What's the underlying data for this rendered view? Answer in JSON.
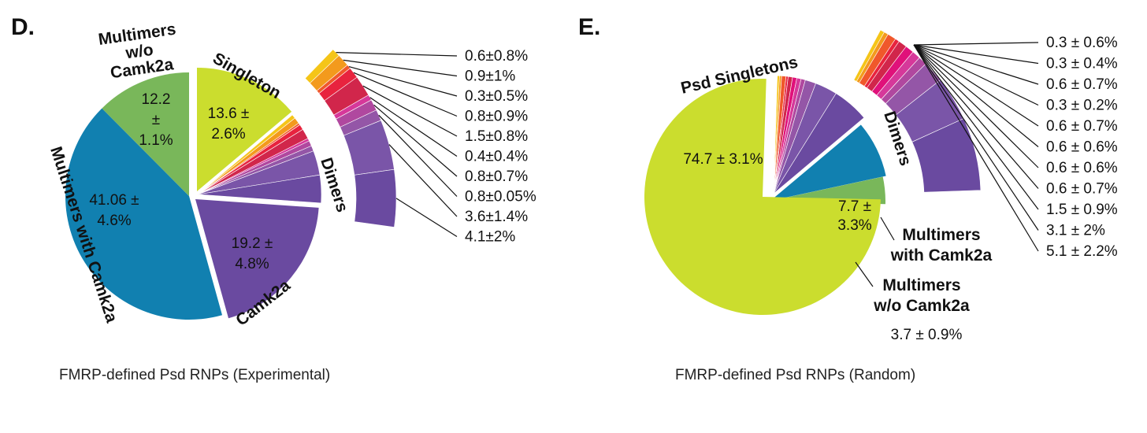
{
  "panels": {
    "d": {
      "letter": "D.",
      "caption": "FMRP-defined Psd RNPs (Experimental)"
    },
    "e": {
      "letter": "E.",
      "caption": "FMRP-defined Psd RNPs (Random)"
    }
  },
  "colors": {
    "blue": "#1180b0",
    "green": "#79b75a",
    "yellowgreen": "#cbdd2e",
    "purple": "#6a4aa0",
    "dimer_palette": [
      "#f5c518",
      "#f39a1d",
      "#f0582b",
      "#e8233e",
      "#d1264b",
      "#e0117a",
      "#d6389a",
      "#b0489f",
      "#9456a7",
      "#7a55a8",
      "#6a4aa0"
    ]
  },
  "chart_data": [
    {
      "type": "pie",
      "title": "FMRP-defined Psd RNPs (Experimental)",
      "slices": [
        {
          "label": "Singleton",
          "value": 13.6,
          "display": [
            "13.6 ±",
            "2.6%"
          ],
          "color": "#cbdd2e"
        },
        {
          "label": "Dimers",
          "value": 12.0,
          "display": [],
          "color": "#b0489f"
        },
        {
          "label": "Camk2a",
          "value": 19.2,
          "display": [
            "19.2 ±",
            "4.8%"
          ],
          "color": "#6a4aa0"
        },
        {
          "label": "Multimers with Camk2a",
          "value": 41.06,
          "display": [
            "41.06 ±",
            "4.6%"
          ],
          "color": "#1180b0"
        },
        {
          "label": [
            "Multimers",
            "w/o",
            "Camk2a"
          ],
          "value": 12.2,
          "display": [
            "12.2",
            "±",
            "1.1%"
          ],
          "color": "#79b75a"
        }
      ],
      "dimers": {
        "label": "Dimers",
        "values": [
          0.6,
          0.9,
          0.3,
          0.8,
          1.5,
          0.4,
          0.8,
          0.8,
          3.6,
          4.1
        ],
        "labels": [
          "0.6±0.8%",
          "0.9±1%",
          "0.3±0.5%",
          "0.8±0.9%",
          "1.5±0.8%",
          "0.4±0.4%",
          "0.8±0.7%",
          "0.8±0.05%",
          "3.6±1.4%",
          "4.1±2%"
        ]
      }
    },
    {
      "type": "pie",
      "title": "FMRP-defined Psd RNPs (Random)",
      "slices": [
        {
          "label": "Psd Singletons",
          "value": 74.7,
          "display": [
            "74.7 ± 3.1%"
          ],
          "color": "#cbdd2e"
        },
        {
          "label": "Dimers",
          "value": 13.3,
          "display": [],
          "color": "#9456a7"
        },
        {
          "label": [
            "Multimers",
            "with Camk2a"
          ],
          "value": 7.7,
          "display": [
            "7.7 ±",
            "3.3%"
          ],
          "color": "#1180b0"
        },
        {
          "label": [
            "Multimers",
            "w/o Camk2a"
          ],
          "value": 3.7,
          "display": [
            "3.7 ± 0.9%"
          ],
          "color": "#79b75a"
        }
      ],
      "dimers": {
        "label": "Dimers",
        "values": [
          0.3,
          0.3,
          0.6,
          0.3,
          0.6,
          0.6,
          0.6,
          0.6,
          1.5,
          3.1,
          5.1
        ],
        "labels": [
          "0.3 ± 0.6%",
          "0.3 ± 0.4%",
          "0.6 ± 0.7%",
          "0.3 ± 0.2%",
          "0.6 ± 0.7%",
          "0.6 ± 0.6%",
          "0.6 ± 0.6%",
          "0.6 ± 0.7%",
          "1.5 ± 0.9%",
          "3.1 ± 2%",
          "5.1 ± 2.2%"
        ]
      }
    }
  ]
}
